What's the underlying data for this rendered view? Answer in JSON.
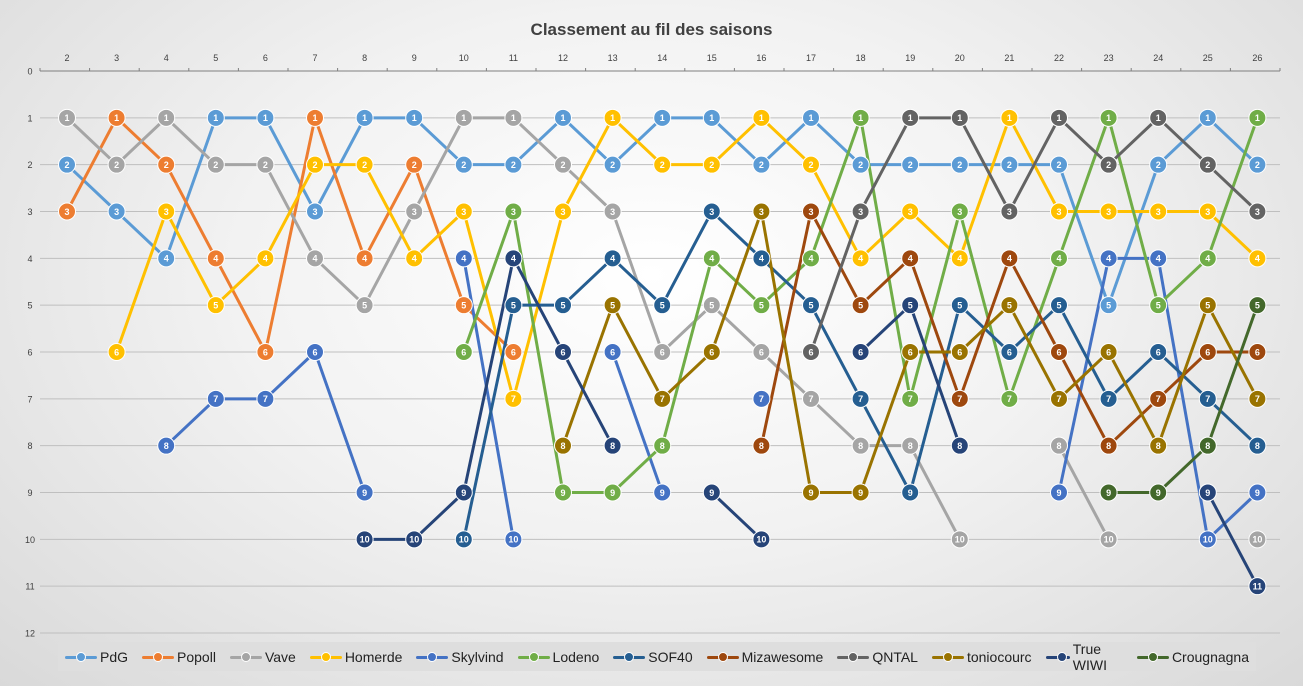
{
  "chart_data": {
    "type": "line",
    "title": "Classement au fil des saisons",
    "x": [
      2,
      3,
      4,
      5,
      6,
      7,
      8,
      9,
      10,
      11,
      12,
      13,
      14,
      15,
      16,
      17,
      18,
      19,
      20,
      21,
      22,
      23,
      24,
      25,
      26
    ],
    "ylim": [
      0,
      12
    ],
    "y_reversed": true,
    "y_ticks": [
      0,
      1,
      2,
      3,
      4,
      5,
      6,
      7,
      8,
      9,
      10,
      11,
      12
    ],
    "grid": true,
    "legend_position": "bottom",
    "series": [
      {
        "name": "PdG",
        "color": "#5b9bd5",
        "values": [
          2,
          3,
          4,
          1,
          1,
          3,
          1,
          1,
          2,
          2,
          1,
          2,
          1,
          1,
          2,
          1,
          2,
          2,
          2,
          2,
          2,
          5,
          2,
          1,
          2
        ]
      },
      {
        "name": "Popoll",
        "color": "#ed7d31",
        "values": [
          3,
          1,
          2,
          4,
          6,
          1,
          4,
          2,
          5,
          6,
          null,
          null,
          null,
          null,
          null,
          null,
          null,
          null,
          null,
          null,
          null,
          null,
          null,
          null,
          null
        ]
      },
      {
        "name": "Vave",
        "color": "#a5a5a5",
        "values": [
          1,
          2,
          1,
          2,
          2,
          4,
          5,
          3,
          1,
          1,
          2,
          3,
          6,
          5,
          6,
          7,
          8,
          8,
          10,
          null,
          8,
          10,
          null,
          null,
          10
        ]
      },
      {
        "name": "Homerde",
        "color": "#ffc000",
        "values": [
          null,
          6,
          3,
          5,
          4,
          2,
          2,
          4,
          3,
          7,
          3,
          1,
          2,
          2,
          1,
          2,
          4,
          3,
          4,
          1,
          3,
          3,
          3,
          3,
          4
        ]
      },
      {
        "name": "Skylvind",
        "color": "#4472c4",
        "values": [
          null,
          null,
          8,
          7,
          7,
          6,
          9,
          null,
          4,
          10,
          null,
          6,
          9,
          null,
          7,
          null,
          null,
          null,
          null,
          null,
          9,
          4,
          4,
          10,
          9
        ]
      },
      {
        "name": "Lodeno",
        "color": "#70ad47",
        "values": [
          null,
          null,
          null,
          null,
          null,
          null,
          null,
          null,
          6,
          3,
          9,
          9,
          8,
          4,
          5,
          4,
          1,
          7,
          3,
          7,
          4,
          1,
          5,
          4,
          1
        ]
      },
      {
        "name": "SOF40",
        "color": "#255e91",
        "values": [
          null,
          null,
          null,
          null,
          null,
          null,
          null,
          null,
          10,
          5,
          5,
          4,
          5,
          3,
          4,
          5,
          7,
          9,
          5,
          6,
          5,
          7,
          6,
          7,
          8
        ]
      },
      {
        "name": "Mizawesome",
        "color": "#9e480e",
        "values": [
          null,
          null,
          null,
          null,
          null,
          null,
          null,
          null,
          null,
          null,
          null,
          null,
          null,
          null,
          8,
          3,
          5,
          4,
          7,
          4,
          6,
          8,
          7,
          6,
          6
        ]
      },
      {
        "name": "QNTAL",
        "color": "#636363",
        "values": [
          null,
          null,
          null,
          null,
          null,
          null,
          null,
          null,
          null,
          null,
          null,
          null,
          null,
          null,
          null,
          6,
          3,
          1,
          1,
          3,
          1,
          2,
          1,
          2,
          3
        ]
      },
      {
        "name": "toniocourc",
        "color": "#997300",
        "values": [
          null,
          null,
          null,
          null,
          null,
          null,
          null,
          null,
          null,
          null,
          8,
          5,
          7,
          6,
          3,
          9,
          9,
          6,
          6,
          5,
          7,
          6,
          8,
          5,
          7
        ]
      },
      {
        "name": "True WIWI",
        "color": "#264478",
        "values": [
          null,
          null,
          null,
          null,
          null,
          null,
          10,
          10,
          9,
          4,
          6,
          8,
          null,
          9,
          10,
          null,
          6,
          5,
          8,
          null,
          null,
          null,
          null,
          9,
          11
        ]
      },
      {
        "name": "Crougnagna",
        "color": "#43682b",
        "values": [
          null,
          null,
          null,
          null,
          null,
          null,
          null,
          null,
          null,
          null,
          null,
          null,
          null,
          null,
          null,
          null,
          null,
          null,
          null,
          null,
          null,
          9,
          9,
          8,
          5
        ]
      }
    ]
  }
}
